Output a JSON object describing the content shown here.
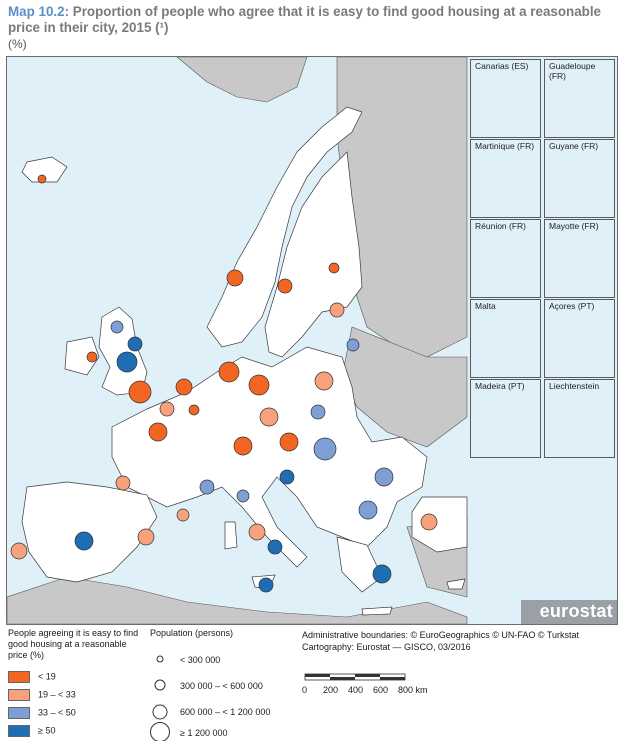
{
  "title": {
    "label": "Map 10.2:",
    "text": "Proportion of people who agree that it is easy to find good housing at a reasonable price in their city, 2015 (¹)"
  },
  "units": "(%)",
  "insets": [
    {
      "name": "Canarias (ES)",
      "scale": [
        "0",
        "100"
      ]
    },
    {
      "name": "Guadeloupe (FR)",
      "scale": [
        "0",
        "25"
      ]
    },
    {
      "name": "Martinique (FR)",
      "scale": [
        "0",
        "20"
      ]
    },
    {
      "name": "Guyane (FR)",
      "scale": [
        "0",
        "100"
      ]
    },
    {
      "name": "Réunion (FR)",
      "scale": [
        "0",
        "20"
      ]
    },
    {
      "name": "Mayotte (FR)",
      "scale": [
        "0",
        "15"
      ]
    },
    {
      "name": "Malta",
      "scale": [
        "0",
        "10"
      ]
    },
    {
      "name": "Açores (PT)",
      "scale": [
        "0",
        "50"
      ]
    },
    {
      "name": "Madeira (PT)",
      "scale": [
        "0",
        "20"
      ]
    },
    {
      "name": "Liechtenstein",
      "scale": []
    }
  ],
  "logo": "eurostat",
  "legend": {
    "share_title": "People agreeing it is easy to find good housing at a reasonable price (%)",
    "share_classes": [
      {
        "label": "< 19",
        "color": "#f26522"
      },
      {
        "label": "19 – < 33",
        "color": "#f7a27c"
      },
      {
        "label": "33 – < 50",
        "color": "#7e9fd6"
      },
      {
        "label": "≥ 50",
        "color": "#1f6db5"
      }
    ],
    "pop_title": "Population (persons)",
    "pop_classes": [
      "< 300 000",
      "300 000 – < 600 000",
      "600 000 – < 1 200 000",
      "≥ 1 200 000"
    ]
  },
  "credits": {
    "line1": "Administrative boundaries: © EuroGeographics © UN-FAO © Turkstat",
    "line2": "Cartography: Eurostat — GISCO, 03/2016"
  },
  "scalebar": {
    "ticks": [
      "0",
      "200",
      "400",
      "600",
      "800 km"
    ]
  },
  "colors": {
    "sea": "#dff0f9",
    "land_in": "#ffffff",
    "land_out": "#c8c8c8",
    "border": "#3a3a3a"
  }
}
